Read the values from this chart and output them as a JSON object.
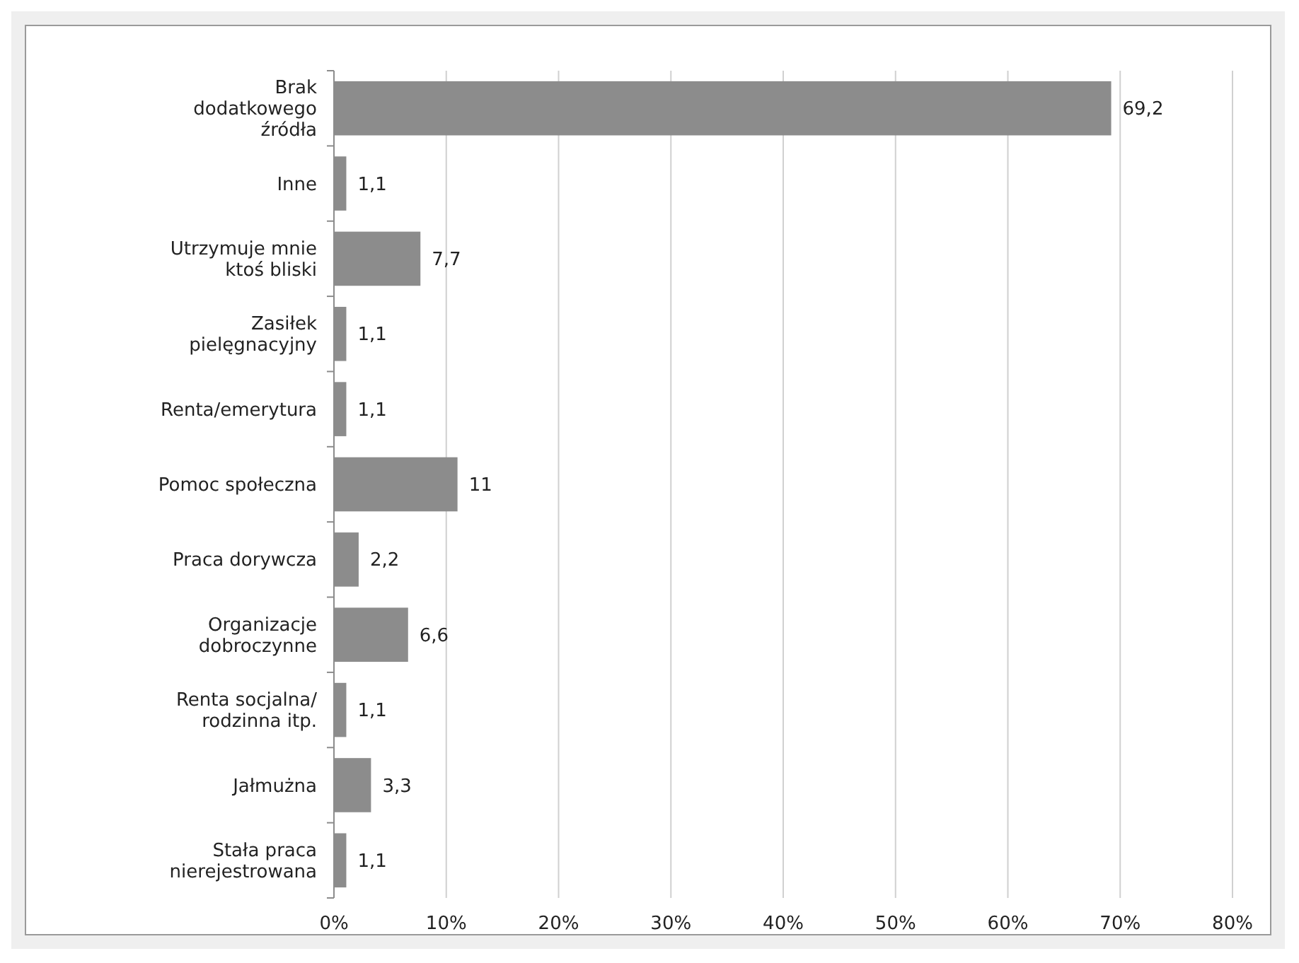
{
  "chart_data": {
    "type": "bar",
    "orientation": "horizontal",
    "categories": [
      "Brak\ndodatkowego\nźródła",
      "Inne",
      "Utrzymuje mnie\nktoś bliski",
      "Zasiłek\npielęgnacyjny",
      "Renta/emerytura",
      "Pomoc społeczna",
      "Praca dorywcza",
      "Organizacje\ndobroczynne",
      "Renta socjalna/\nrodzinna itp.",
      "Jałmużna",
      "Stała praca\nnierejestrowana"
    ],
    "values": [
      69.2,
      1.1,
      7.7,
      1.1,
      1.1,
      11,
      2.2,
      6.6,
      1.1,
      3.3,
      1.1
    ],
    "value_labels": [
      "69,2",
      "1,1",
      "7,7",
      "1,1",
      "1,1",
      "11",
      "2,2",
      "6,6",
      "1,1",
      "3,3",
      "1,1"
    ],
    "color": "#8c8c8c",
    "xlim": [
      0,
      80
    ],
    "xticks": [
      {
        "value": 0,
        "label": "0%"
      },
      {
        "value": 10,
        "label": "10%"
      },
      {
        "value": 20,
        "label": "20%"
      },
      {
        "value": 30,
        "label": "30%"
      },
      {
        "value": 40,
        "label": "40%"
      },
      {
        "value": 50,
        "label": "50%"
      },
      {
        "value": 60,
        "label": "60%"
      },
      {
        "value": 70,
        "label": "70%"
      },
      {
        "value": 80,
        "label": "80%"
      }
    ],
    "grid": "x"
  }
}
